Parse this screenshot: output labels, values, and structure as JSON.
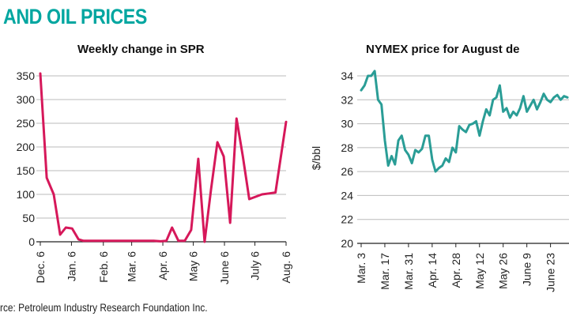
{
  "page": {
    "title": "AND OIL PRICES",
    "source": "rce: Petroleum Industry Research Foundation Inc."
  },
  "colors": {
    "spr_line": "#d6185a",
    "nymex_line": "#2a9d96",
    "title": "#00a6a0",
    "grid": "#bbbbbb",
    "axis": "#222222"
  },
  "chart_data": [
    {
      "type": "line",
      "title": "Weekly change in SPR",
      "xlabel": "",
      "ylabel": "",
      "ylim": [
        0,
        350
      ],
      "yticks": [
        "350",
        "300",
        "250",
        "200",
        "150",
        "100",
        "50",
        "0"
      ],
      "ytick_values": [
        350,
        300,
        250,
        200,
        150,
        100,
        50,
        0
      ],
      "x_ticks": [
        "Dec. 6",
        "Jan. 6",
        "Feb. 6",
        "Mar. 6",
        "Apr. 6",
        "May 6",
        "June 6",
        "July 6",
        "Aug. 6"
      ],
      "x_ticks_pos": [
        0,
        4.4,
        8.9,
        12.9,
        17.3,
        21.6,
        26.0,
        30.3,
        34.7
      ],
      "xlim": [
        0,
        34.7
      ],
      "grid": "horizontal",
      "series": [
        {
          "x": [
            0,
            0.9,
            1.9,
            2.8,
            3.6,
            4.5,
            5.4,
            6.1,
            7.0,
            8.0,
            9.0,
            10,
            11,
            12,
            13,
            14,
            15,
            16,
            17,
            17.8,
            18.6,
            19.5,
            20.4,
            21.3,
            22.3,
            23.2,
            24.1,
            25.0,
            25.9,
            26.8,
            27.7,
            28.6,
            29.5,
            30.4,
            31.3,
            32.3,
            33.2,
            34.7
          ],
          "y": [
            355,
            135,
            100,
            15,
            30,
            28,
            5,
            2,
            2,
            2,
            2,
            2,
            2,
            2,
            2,
            2,
            2,
            2,
            1,
            2,
            30,
            2,
            2,
            25,
            175,
            0,
            110,
            210,
            180,
            40,
            260,
            180,
            90,
            95,
            100,
            102,
            104,
            253
          ]
        }
      ]
    },
    {
      "type": "line",
      "title": "NYMEX price for August de",
      "xlabel": "",
      "ylabel": "$/bbl",
      "ylim": [
        20,
        34
      ],
      "yticks": [
        "34",
        "32",
        "30",
        "28",
        "26",
        "24",
        "22",
        "20"
      ],
      "ytick_values": [
        34,
        32,
        30,
        28,
        26,
        24,
        22,
        20
      ],
      "x_ticks": [
        "Mar. 3",
        "Mar. 17",
        "Mar. 31",
        "Apr. 14",
        "Apr. 28",
        "May 12",
        "May 26",
        "June 9",
        "June 23"
      ],
      "x_ticks_pos": [
        0,
        14,
        28,
        42,
        56,
        70,
        84,
        98,
        112
      ],
      "xlim": [
        0,
        122
      ],
      "grid": "horizontal",
      "series": [
        {
          "x": [
            0,
            2,
            4,
            6,
            8,
            10,
            12,
            14,
            16,
            18,
            20,
            22,
            24,
            26,
            28,
            30,
            32,
            34,
            36,
            38,
            40,
            42,
            44,
            46,
            48,
            50,
            52,
            54,
            56,
            58,
            60,
            62,
            64,
            66,
            68,
            70,
            72,
            74,
            76,
            78,
            80,
            82,
            84,
            86,
            88,
            90,
            92,
            94,
            96,
            98,
            100,
            102,
            104,
            106,
            108,
            110,
            112,
            114,
            116,
            118,
            120,
            122
          ],
          "y": [
            32.8,
            33.2,
            34.0,
            34.0,
            34.4,
            32.0,
            31.6,
            28.6,
            26.5,
            27.3,
            26.6,
            28.6,
            29.0,
            27.8,
            27.4,
            26.7,
            27.8,
            27.6,
            27.9,
            29.0,
            29.0,
            27.0,
            26.0,
            26.3,
            26.5,
            27.1,
            26.8,
            28.0,
            27.6,
            29.8,
            29.5,
            29.3,
            29.9,
            30.0,
            30.2,
            29.0,
            30.2,
            31.2,
            30.7,
            32.0,
            32.2,
            33.2,
            31.0,
            31.3,
            30.5,
            31.0,
            30.7,
            31.3,
            32.3,
            31.0,
            31.5,
            32.0,
            31.2,
            31.8,
            32.5,
            32.0,
            31.8,
            32.2,
            32.4,
            32.0,
            32.3,
            32.2
          ]
        }
      ]
    }
  ]
}
